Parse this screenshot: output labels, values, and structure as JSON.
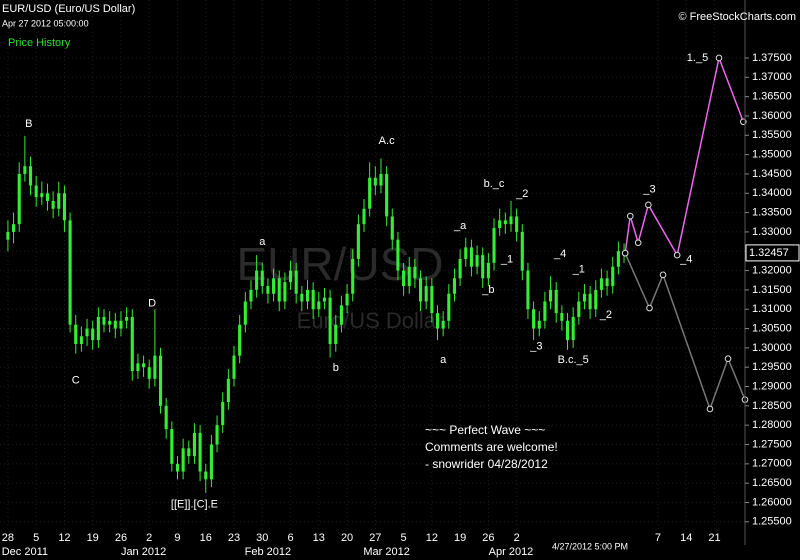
{
  "chart_data": {
    "type": "candlestick",
    "title": "EUR/USD (Euro/US Dollar)",
    "subtitle": "Apr 27 2012 05:00:00",
    "legend": "Price History",
    "source": "© FreeStockCharts.com",
    "watermark": [
      "EUR/USD",
      "Euro/US Dollar"
    ],
    "comment": [
      "~~~ Perfect Wave ~~~",
      "Comments are welcome!",
      "- snowrider  04/28/2012"
    ],
    "last_time": "4/27/2012 5:00 PM",
    "last_price": {
      "value": 1.32457,
      "label": "1.32457"
    },
    "color": "#33ee33",
    "xlim": [
      -1.4,
      130.4
    ],
    "ylim": [
      1.249,
      1.39
    ],
    "xticks": [
      {
        "value": 0,
        "label": "28"
      },
      {
        "value": 5,
        "label": "5"
      },
      {
        "value": 10,
        "label": "12"
      },
      {
        "value": 15,
        "label": "19"
      },
      {
        "value": 20,
        "label": "26"
      },
      {
        "value": 25,
        "label": "2"
      },
      {
        "value": 30,
        "label": "9"
      },
      {
        "value": 35,
        "label": "16"
      },
      {
        "value": 40,
        "label": "23"
      },
      {
        "value": 45,
        "label": "30"
      },
      {
        "value": 50,
        "label": "6"
      },
      {
        "value": 55,
        "label": "13"
      },
      {
        "value": 60,
        "label": "20"
      },
      {
        "value": 65,
        "label": "27"
      },
      {
        "value": 70,
        "label": "5"
      },
      {
        "value": 75,
        "label": "12"
      },
      {
        "value": 80,
        "label": "19"
      },
      {
        "value": 85,
        "label": "26"
      },
      {
        "value": 90,
        "label": "2"
      },
      {
        "value": 115,
        "label": "7"
      },
      {
        "value": 120,
        "label": "14"
      },
      {
        "value": 125,
        "label": "21"
      }
    ],
    "month_ticks": [
      {
        "value": 3,
        "label": "Dec 2011"
      },
      {
        "value": 24,
        "label": "Jan 2012"
      },
      {
        "value": 46,
        "label": "Feb 2012"
      },
      {
        "value": 67,
        "label": "Mar 2012"
      },
      {
        "value": 89,
        "label": "Apr 2012"
      }
    ],
    "yticks": [
      {
        "value": 1.255,
        "label": "1.25500"
      },
      {
        "value": 1.26,
        "label": "1.26000"
      },
      {
        "value": 1.265,
        "label": "1.26500"
      },
      {
        "value": 1.27,
        "label": "1.27000"
      },
      {
        "value": 1.275,
        "label": "1.27500"
      },
      {
        "value": 1.28,
        "label": "1.28000"
      },
      {
        "value": 1.285,
        "label": "1.28500"
      },
      {
        "value": 1.29,
        "label": "1.29000"
      },
      {
        "value": 1.295,
        "label": "1.29500"
      },
      {
        "value": 1.3,
        "label": "1.30000"
      },
      {
        "value": 1.305,
        "label": "1.30500"
      },
      {
        "value": 1.31,
        "label": "1.31000"
      },
      {
        "value": 1.315,
        "label": "1.31500"
      },
      {
        "value": 1.32,
        "label": "1.32000"
      },
      {
        "value": 1.325,
        "label": "1.32500"
      },
      {
        "value": 1.33,
        "label": "1.33000"
      },
      {
        "value": 1.335,
        "label": "1.33500"
      },
      {
        "value": 1.34,
        "label": "1.34000"
      },
      {
        "value": 1.345,
        "label": "1.34500"
      },
      {
        "value": 1.35,
        "label": "1.35000"
      },
      {
        "value": 1.355,
        "label": "1.35500"
      },
      {
        "value": 1.36,
        "label": "1.36000"
      },
      {
        "value": 1.365,
        "label": "1.36500"
      },
      {
        "value": 1.37,
        "label": "1.37000"
      },
      {
        "value": 1.375,
        "label": "1.37500"
      }
    ],
    "ohlc": [
      [
        1.328,
        1.333,
        1.325,
        1.33
      ],
      [
        1.33,
        1.335,
        1.327,
        1.332
      ],
      [
        1.332,
        1.348,
        1.33,
        1.345
      ],
      [
        1.345,
        1.3548,
        1.343,
        1.347
      ],
      [
        1.347,
        1.3495,
        1.3395,
        1.342
      ],
      [
        1.342,
        1.3445,
        1.3365,
        1.339
      ],
      [
        1.339,
        1.343,
        1.337,
        1.34
      ],
      [
        1.34,
        1.3425,
        1.3355,
        1.338
      ],
      [
        1.338,
        1.3405,
        1.3335,
        1.336
      ],
      [
        1.336,
        1.343,
        1.334,
        1.34
      ],
      [
        1.34,
        1.342,
        1.33,
        1.333
      ],
      [
        1.333,
        1.335,
        1.304,
        1.306
      ],
      [
        1.306,
        1.3085,
        1.2985,
        1.301
      ],
      [
        1.301,
        1.3055,
        1.299,
        1.303
      ],
      [
        1.303,
        1.3075,
        1.3005,
        1.305
      ],
      [
        1.305,
        1.307,
        1.2995,
        1.302
      ],
      [
        1.302,
        1.3105,
        1.3,
        1.308
      ],
      [
        1.308,
        1.31,
        1.304,
        1.306
      ],
      [
        1.306,
        1.3095,
        1.304,
        1.307
      ],
      [
        1.307,
        1.309,
        1.3025,
        1.305
      ],
      [
        1.305,
        1.3095,
        1.303,
        1.307
      ],
      [
        1.307,
        1.3105,
        1.305,
        1.308
      ],
      [
        1.308,
        1.31,
        1.2915,
        1.294
      ],
      [
        1.294,
        1.2985,
        1.292,
        1.296
      ],
      [
        1.296,
        1.298,
        1.2925,
        1.295
      ],
      [
        1.295,
        1.297,
        1.2895,
        1.292
      ],
      [
        1.292,
        1.31,
        1.29,
        1.298
      ],
      [
        1.298,
        1.3,
        1.283,
        1.285
      ],
      [
        1.285,
        1.287,
        1.2765,
        1.279
      ],
      [
        1.279,
        1.281,
        1.268,
        1.27
      ],
      [
        1.27,
        1.272,
        1.266,
        1.268
      ],
      [
        1.268,
        1.2765,
        1.266,
        1.274
      ],
      [
        1.274,
        1.276,
        1.27,
        1.272
      ],
      [
        1.272,
        1.2805,
        1.27,
        1.278
      ],
      [
        1.278,
        1.28,
        1.2655,
        1.268
      ],
      [
        1.268,
        1.27,
        1.2625,
        1.266
      ],
      [
        1.266,
        1.2775,
        1.264,
        1.275
      ],
      [
        1.275,
        1.2825,
        1.273,
        1.28
      ],
      [
        1.28,
        1.2885,
        1.278,
        1.286
      ],
      [
        1.286,
        1.2945,
        1.284,
        1.292
      ],
      [
        1.292,
        1.3005,
        1.29,
        1.298
      ],
      [
        1.298,
        1.3085,
        1.296,
        1.306
      ],
      [
        1.306,
        1.3145,
        1.304,
        1.312
      ],
      [
        1.312,
        1.3175,
        1.31,
        1.315
      ],
      [
        1.315,
        1.324,
        1.313,
        1.32
      ],
      [
        1.32,
        1.322,
        1.314,
        1.316
      ],
      [
        1.316,
        1.318,
        1.3115,
        1.314
      ],
      [
        1.314,
        1.3205,
        1.312,
        1.318
      ],
      [
        1.318,
        1.32,
        1.3095,
        1.312
      ],
      [
        1.312,
        1.3195,
        1.31,
        1.317
      ],
      [
        1.317,
        1.3225,
        1.315,
        1.32
      ],
      [
        1.32,
        1.322,
        1.3115,
        1.314
      ],
      [
        1.314,
        1.316,
        1.3095,
        1.312
      ],
      [
        1.312,
        1.3175,
        1.31,
        1.315
      ],
      [
        1.315,
        1.317,
        1.3075,
        1.31
      ],
      [
        1.31,
        1.3145,
        1.308,
        1.312
      ],
      [
        1.312,
        1.3155,
        1.31,
        1.313
      ],
      [
        1.313,
        1.315,
        1.2975,
        1.301
      ],
      [
        1.301,
        1.3085,
        1.299,
        1.306
      ],
      [
        1.306,
        1.3135,
        1.304,
        1.311
      ],
      [
        1.311,
        1.3165,
        1.309,
        1.314
      ],
      [
        1.314,
        1.3255,
        1.312,
        1.323
      ],
      [
        1.323,
        1.3345,
        1.321,
        1.332
      ],
      [
        1.332,
        1.3385,
        1.33,
        1.336
      ],
      [
        1.336,
        1.348,
        1.334,
        1.344
      ],
      [
        1.344,
        1.347,
        1.3395,
        1.342
      ],
      [
        1.342,
        1.349,
        1.34,
        1.345
      ],
      [
        1.345,
        1.347,
        1.3315,
        1.334
      ],
      [
        1.334,
        1.336,
        1.3255,
        1.328
      ],
      [
        1.328,
        1.33,
        1.3175,
        1.32
      ],
      [
        1.32,
        1.322,
        1.3135,
        1.316
      ],
      [
        1.316,
        1.3235,
        1.314,
        1.321
      ],
      [
        1.321,
        1.323,
        1.3155,
        1.318
      ],
      [
        1.318,
        1.32,
        1.3095,
        1.312
      ],
      [
        1.312,
        1.3185,
        1.31,
        1.316
      ],
      [
        1.316,
        1.318,
        1.3065,
        1.309
      ],
      [
        1.309,
        1.311,
        1.302,
        1.305
      ],
      [
        1.305,
        1.3095,
        1.303,
        1.307
      ],
      [
        1.307,
        1.3165,
        1.305,
        1.314
      ],
      [
        1.314,
        1.3205,
        1.312,
        1.318
      ],
      [
        1.318,
        1.3255,
        1.316,
        1.323
      ],
      [
        1.323,
        1.3285,
        1.321,
        1.326
      ],
      [
        1.326,
        1.328,
        1.3185,
        1.321
      ],
      [
        1.321,
        1.3265,
        1.319,
        1.324
      ],
      [
        1.324,
        1.326,
        1.3155,
        1.318
      ],
      [
        1.318,
        1.3245,
        1.316,
        1.322
      ],
      [
        1.322,
        1.3335,
        1.32,
        1.331
      ],
      [
        1.331,
        1.336,
        1.329,
        1.333
      ],
      [
        1.333,
        1.335,
        1.3295,
        1.332
      ],
      [
        1.332,
        1.338,
        1.33,
        1.334
      ],
      [
        1.334,
        1.336,
        1.3275,
        1.33
      ],
      [
        1.33,
        1.332,
        1.3175,
        1.32
      ],
      [
        1.32,
        1.322,
        1.3075,
        1.31
      ],
      [
        1.31,
        1.312,
        1.302,
        1.305
      ],
      [
        1.305,
        1.3095,
        1.303,
        1.307
      ],
      [
        1.307,
        1.3145,
        1.305,
        1.312
      ],
      [
        1.312,
        1.3185,
        1.31,
        1.315
      ],
      [
        1.315,
        1.317,
        1.3065,
        1.309
      ],
      [
        1.309,
        1.311,
        1.3045,
        1.307
      ],
      [
        1.307,
        1.309,
        1.2995,
        1.302
      ],
      [
        1.302,
        1.3105,
        1.3,
        1.308
      ],
      [
        1.308,
        1.3145,
        1.306,
        1.312
      ],
      [
        1.312,
        1.3165,
        1.31,
        1.314
      ],
      [
        1.314,
        1.316,
        1.3075,
        1.31
      ],
      [
        1.31,
        1.3175,
        1.308,
        1.315
      ],
      [
        1.315,
        1.3205,
        1.313,
        1.318
      ],
      [
        1.318,
        1.32,
        1.3135,
        1.316
      ],
      [
        1.316,
        1.3235,
        1.314,
        1.321
      ],
      [
        1.321,
        1.3275,
        1.319,
        1.325
      ],
      [
        1.325,
        1.327,
        1.322,
        1.32457
      ]
    ],
    "projections": [
      {
        "color": "#ee66ee",
        "x": [
          109.2,
          110.1,
          111.5,
          113.3,
          118.4,
          125.8,
          130.1
        ],
        "y": [
          1.3245,
          1.3341,
          1.3272,
          1.337,
          1.324,
          1.375,
          1.3585
        ]
      },
      {
        "color": "#777777",
        "x": [
          109.2,
          113.5,
          115.9,
          124.2,
          127.4,
          130.4
        ],
        "y": [
          1.3245,
          1.3103,
          1.3189,
          1.2842,
          1.2972,
          1.2866
        ]
      }
    ],
    "annotations": [
      {
        "text": "B",
        "x": 3.7,
        "y": 1.3579
      },
      {
        "text": "C",
        "x": 12,
        "y": 1.2915
      },
      {
        "text": "D",
        "x": 25.5,
        "y": 1.3114
      },
      {
        "text": "[[E]].[C].E",
        "x": 33,
        "y": 1.2594
      },
      {
        "text": "a",
        "x": 45,
        "y": 1.3274
      },
      {
        "text": "b",
        "x": 58,
        "y": 1.2948
      },
      {
        "text": "A.c",
        "x": 67,
        "y": 1.3535
      },
      {
        "text": "_a",
        "x": 80,
        "y": 1.3315
      },
      {
        "text": "a",
        "x": 77,
        "y": 1.2969
      },
      {
        "text": "b._c",
        "x": 86,
        "y": 1.3424
      },
      {
        "text": "_2",
        "x": 91,
        "y": 1.3398
      },
      {
        "text": "_1",
        "x": 88.3,
        "y": 1.3228
      },
      {
        "text": "_b",
        "x": 85,
        "y": 1.315
      },
      {
        "text": "_4",
        "x": 97.7,
        "y": 1.3243
      },
      {
        "text": "_1",
        "x": 101,
        "y": 1.3202
      },
      {
        "text": "_3",
        "x": 93.5,
        "y": 1.3003
      },
      {
        "text": "_2",
        "x": 105.8,
        "y": 1.3085
      },
      {
        "text": "B.c._5",
        "x": 100,
        "y": 1.2969
      },
      {
        "text": "1._5",
        "x": 122,
        "y": 1.375
      },
      {
        "text": "_3",
        "x": 113.5,
        "y": 1.3409
      },
      {
        "text": "_4",
        "x": 120,
        "y": 1.3228
      }
    ]
  }
}
